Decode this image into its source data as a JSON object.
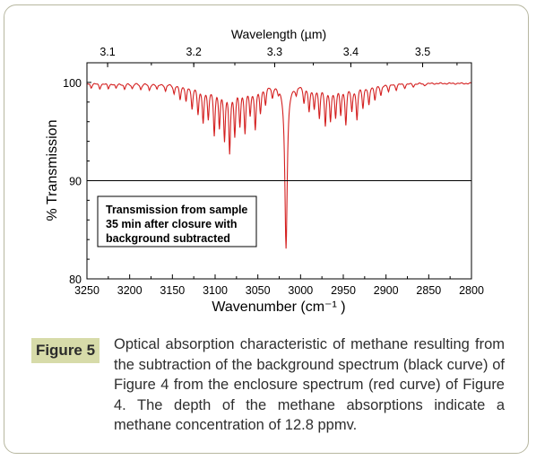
{
  "figure": {
    "label": "Figure 5",
    "caption": "Optical absorption characteristic of methane resulting from the subtraction of the background spectrum (black curve) of Figure 4 from the enclosure spectrum (red curve) of Figure 4. The depth of the methane absorptions indicate a methane concentration of 12.8 ppmv."
  },
  "colors": {
    "spectrum": "#d42020",
    "frame": "#000000",
    "badge": "#d7dba9",
    "card_border": "#b7b7a0"
  },
  "chart_data": {
    "type": "line",
    "xlabel": "Wavenumber (cm⁻¹ )",
    "ylabel": "% Transmission",
    "top_axis_label": "Wavelength (µm)",
    "xlim": [
      3250,
      2800
    ],
    "ylim": [
      80,
      102
    ],
    "x_ticks": [
      3250,
      3200,
      3150,
      3100,
      3050,
      3000,
      2950,
      2900,
      2850,
      2800
    ],
    "x_tick_labels": [
      "3250",
      "3200",
      "3150",
      "3100",
      "3050",
      "3000",
      "2950",
      "2900",
      "2850",
      "2800"
    ],
    "y_ticks": [
      80,
      90,
      100
    ],
    "y_tick_labels": [
      "80",
      "90",
      "100"
    ],
    "top_ticks": [
      3.1,
      3.2,
      3.3,
      3.4,
      3.5
    ],
    "top_tick_labels": [
      "3.1",
      "3.2",
      "3.3",
      "3.4",
      "3.5"
    ],
    "reference_line": {
      "y": 90
    },
    "annotation": [
      "Transmission from sample",
      "35 min after closure with",
      "background subtracted"
    ],
    "baseline": 99.9,
    "series": [
      {
        "x": [
          3245,
          3235,
          3225,
          3216,
          3206,
          3197,
          3187,
          3177,
          3168,
          3158,
          3148,
          3141,
          3134,
          3127,
          3120,
          3114,
          3108,
          3101,
          3095,
          3089,
          3083,
          3077,
          3071,
          3065,
          3059,
          3053,
          3047,
          3041,
          3033,
          3026,
          3017,
          3005,
          2996,
          2990,
          2984,
          2978,
          2971,
          2965,
          2959,
          2953,
          2947,
          2940,
          2934,
          2927,
          2920,
          2913,
          2906,
          2897,
          2888,
          2878,
          2868,
          2855
        ],
        "y": [
          99.5,
          99.4,
          99.4,
          99.4,
          99.3,
          99.4,
          99.3,
          99.2,
          99.3,
          99.1,
          98.9,
          98.4,
          98.2,
          97.5,
          97.0,
          96.2,
          96.5,
          95.0,
          95.8,
          94.5,
          93.2,
          95.0,
          96.0,
          95.2,
          97.0,
          95.5,
          97.2,
          98.0,
          98.7,
          99.3,
          83.2,
          99.0,
          98.2,
          97.2,
          97.6,
          96.6,
          95.9,
          96.3,
          96.7,
          97.0,
          96.0,
          97.3,
          96.4,
          97.6,
          97.8,
          98.4,
          98.7,
          99.1,
          99.3,
          99.5,
          99.6,
          99.7
        ]
      }
    ]
  }
}
